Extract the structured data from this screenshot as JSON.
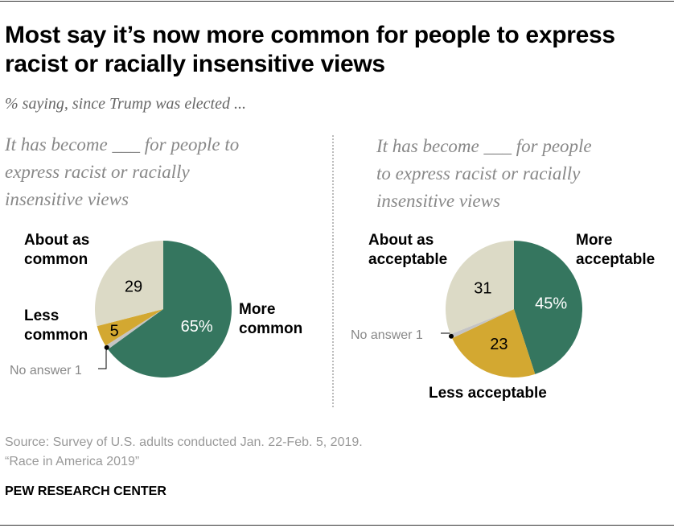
{
  "title": "Most say it’s now more common for people to express racist or racially insensitive views",
  "subtitle": "% saying, since Trump was elected ...",
  "source": "Source: Survey of U.S. adults conducted Jan. 22-Feb. 5, 2019.",
  "report": "“Race in America 2019”",
  "brand": "PEW RESEARCH CENTER",
  "colors": {
    "more": "#35765f",
    "less": "#d3a831",
    "no_answer": "#c4c4c4",
    "about": "#dcdac6"
  },
  "chart_data": [
    {
      "type": "pie",
      "title": "It has become ___ for people to express racist or racially insensitive views",
      "slices": [
        {
          "label": "More common",
          "value": 65,
          "display": "65%"
        },
        {
          "label": "No answer",
          "value": 1,
          "display": "No answer 1"
        },
        {
          "label": "Less common",
          "value": 5,
          "display": "5"
        },
        {
          "label": "About as common",
          "value": 29,
          "display": "29"
        }
      ]
    },
    {
      "type": "pie",
      "title": "It has become ___ for people to express racist or racially insensitive views",
      "slices": [
        {
          "label": "More acceptable",
          "value": 45,
          "display": "45%"
        },
        {
          "label": "Less acceptable",
          "value": 23,
          "display": "23"
        },
        {
          "label": "No answer",
          "value": 1,
          "display": "No answer 1"
        },
        {
          "label": "About as acceptable",
          "value": 31,
          "display": "31"
        }
      ]
    }
  ],
  "left": {
    "q_lines": [
      "It has become ___ for people to",
      "express racist or racially",
      "insensitive views"
    ],
    "labels": {
      "about": [
        "About as",
        "common"
      ],
      "less": [
        "Less",
        "common"
      ],
      "more": [
        "More",
        "common"
      ]
    }
  },
  "right": {
    "q_lines": [
      "It has become ___ for people",
      "to express racist or racially",
      "insensitive views"
    ],
    "labels": {
      "about": [
        "About as",
        "acceptable"
      ],
      "less": "Less acceptable",
      "more": [
        "More",
        "acceptable"
      ]
    }
  }
}
